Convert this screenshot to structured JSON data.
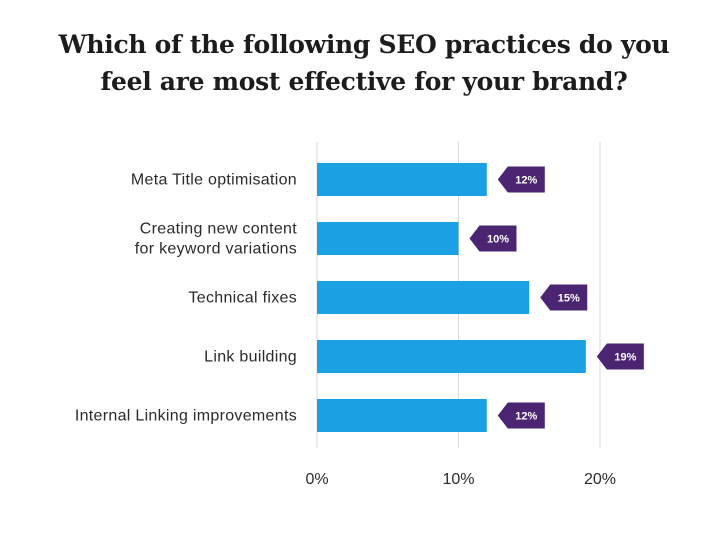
{
  "chart_data": {
    "type": "bar",
    "orientation": "horizontal",
    "title_lines": [
      "Which of the following SEO practices do you",
      "feel are most effective for your brand?"
    ],
    "categories": [
      [
        "Meta Title optimisation"
      ],
      [
        "Creating new content",
        "for keyword variations"
      ],
      [
        "Technical fixes"
      ],
      [
        "Link building"
      ],
      [
        "Internal Linking improvements"
      ]
    ],
    "values": [
      12,
      10,
      15,
      19,
      12
    ],
    "data_labels": [
      "12%",
      "10%",
      "15%",
      "19%",
      "12%"
    ],
    "x_ticks": [
      0,
      10,
      20
    ],
    "x_tick_labels": [
      "0%",
      "10%",
      "20%"
    ],
    "xlim": [
      0,
      20
    ],
    "grid": true,
    "legend": "none",
    "colors": {
      "bar": "#1aa0e3",
      "label_bg": "#4b2472",
      "grid": "#d9d9d9"
    }
  }
}
